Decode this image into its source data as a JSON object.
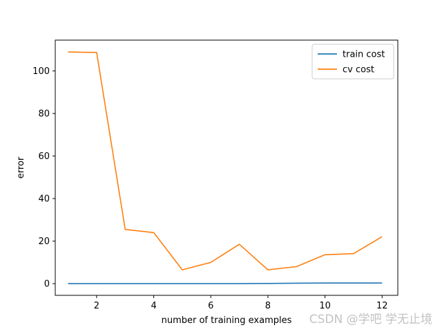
{
  "chart_data": {
    "type": "line",
    "xlabel": "number of training examples",
    "ylabel": "error",
    "xlim": [
      0.55,
      12.55
    ],
    "ylim": [
      -5.5,
      114.5
    ],
    "xticks": [
      2,
      4,
      6,
      8,
      10,
      12
    ],
    "yticks": [
      0,
      20,
      40,
      60,
      80,
      100
    ],
    "grid": false,
    "legend_position": "top-right",
    "x": [
      1,
      2,
      3,
      4,
      5,
      6,
      7,
      8,
      9,
      10,
      11,
      12
    ],
    "series": [
      {
        "name": "train cost",
        "color": "#1f77b4",
        "values": [
          0.0,
          0.0,
          0.0,
          0.0,
          0.0,
          0.0,
          0.0,
          0.1,
          0.2,
          0.3,
          0.3,
          0.3
        ]
      },
      {
        "name": "cv cost",
        "color": "#ff7f0e",
        "values": [
          108.9,
          108.7,
          25.5,
          24.0,
          6.5,
          10.0,
          18.5,
          6.5,
          8.0,
          13.6,
          14.1,
          22.1
        ]
      }
    ]
  },
  "watermark": "CSDN @学吧 学无止境"
}
